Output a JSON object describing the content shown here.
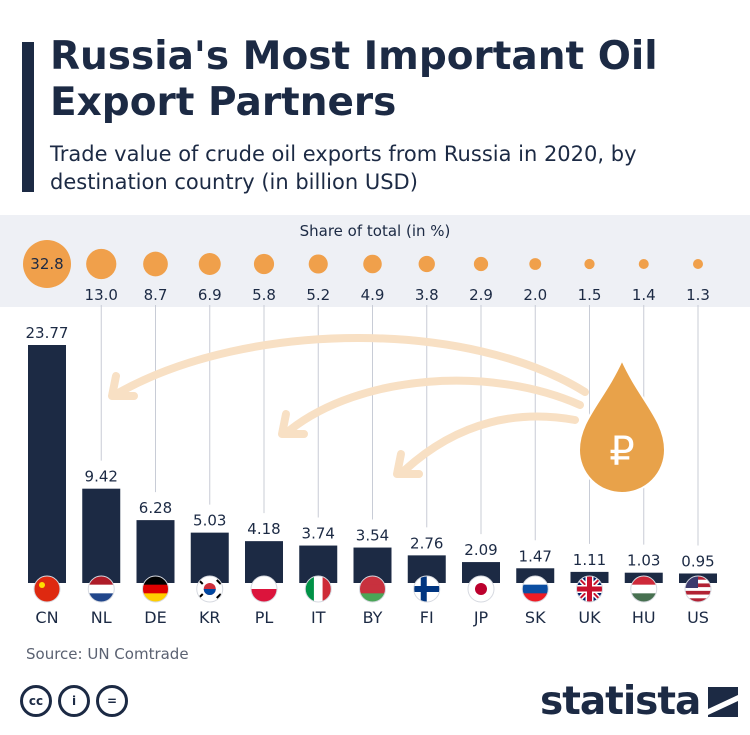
{
  "header": {
    "title": "Russia's Most Important Oil Export Partners",
    "subtitle": "Trade value of crude oil exports from Russia in 2020, by destination country (in billion USD)"
  },
  "share": {
    "caption": "Share of total (in %)"
  },
  "chart_data": {
    "type": "bar",
    "categories": [
      "CN",
      "NL",
      "DE",
      "KR",
      "PL",
      "IT",
      "BY",
      "FI",
      "JP",
      "SK",
      "UK",
      "HU",
      "US"
    ],
    "values": [
      23.77,
      9.42,
      6.28,
      5.03,
      4.18,
      3.74,
      3.54,
      2.76,
      2.09,
      1.47,
      1.11,
      1.03,
      0.95
    ],
    "value_labels": [
      "23.77",
      "9.42",
      "6.28",
      "5.03",
      "4.18",
      "3.74",
      "3.54",
      "2.76",
      "2.09",
      "1.47",
      "1.11",
      "1.03",
      "0.95"
    ],
    "share_values": [
      32.8,
      13.0,
      8.7,
      6.9,
      5.8,
      5.2,
      4.9,
      3.8,
      2.9,
      2.0,
      1.5,
      1.4,
      1.3
    ],
    "share_labels": [
      "32.8",
      "13.0",
      "8.7",
      "6.9",
      "5.8",
      "5.2",
      "4.9",
      "3.8",
      "2.9",
      "2.0",
      "1.5",
      "1.4",
      "1.3"
    ],
    "ylim": [
      0,
      23.77
    ],
    "grid": false,
    "legend": "none"
  },
  "colors": {
    "bar": "#1c2a44",
    "bubble": "#f0a04b",
    "arrow": "#f8e0c4",
    "drop": "#e8a24a",
    "text": "#1c2a44"
  },
  "icons": {
    "drop": "ruble-oil-drop-icon",
    "ruble_symbol": "₽",
    "flags": [
      "china-flag-icon",
      "netherlands-flag-icon",
      "germany-flag-icon",
      "south-korea-flag-icon",
      "poland-flag-icon",
      "italy-flag-icon",
      "belarus-flag-icon",
      "finland-flag-icon",
      "japan-flag-icon",
      "slovakia-flag-icon",
      "uk-flag-icon",
      "hungary-flag-icon",
      "usa-flag-icon"
    ]
  },
  "footer": {
    "source": "Source: UN Comtrade",
    "license_icons": [
      "cc",
      "i",
      "="
    ],
    "brand": "statista"
  }
}
